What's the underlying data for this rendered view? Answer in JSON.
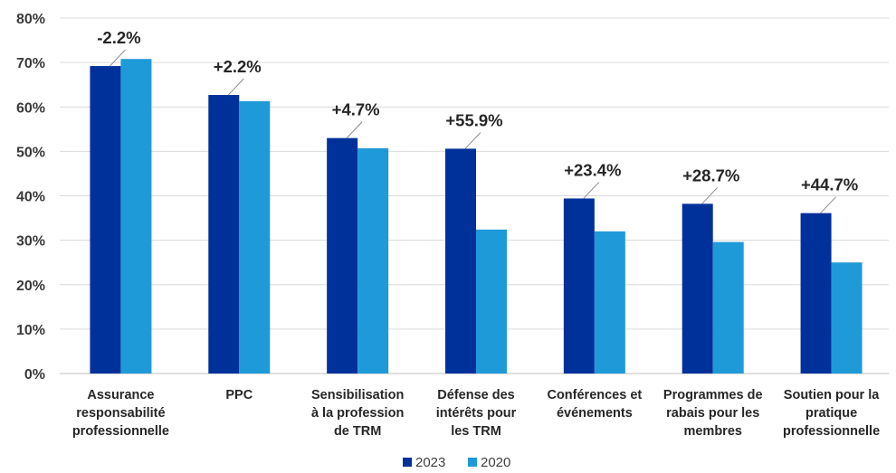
{
  "chart_data": {
    "type": "bar",
    "title": "",
    "xlabel": "",
    "ylabel": "",
    "ylim": [
      0,
      80
    ],
    "y_ticks": [
      "0%",
      "10%",
      "20%",
      "30%",
      "40%",
      "50%",
      "60%",
      "70%",
      "80%"
    ],
    "grid": "horizontal",
    "legend_position": "bottom",
    "categories": [
      [
        "Assurance",
        "responsabilité",
        "professionnelle"
      ],
      [
        "PPC"
      ],
      [
        "Sensibilisation",
        "à la profession",
        "de TRM"
      ],
      [
        "Défense des",
        "intérêts pour",
        "les TRM"
      ],
      [
        "Conférences et",
        "événements"
      ],
      [
        "Programmes de",
        "rabais pour les",
        "membres"
      ],
      [
        "Soutien pour la",
        "pratique",
        "professionnelle"
      ]
    ],
    "series": [
      {
        "name": "2023",
        "color": "#00319b",
        "values": [
          69.2,
          62.7,
          53.0,
          50.6,
          39.4,
          38.2,
          36.1
        ]
      },
      {
        "name": "2020",
        "color": "#1f9ad8",
        "values": [
          70.8,
          61.3,
          50.7,
          32.4,
          32.0,
          29.6,
          25.0
        ]
      }
    ],
    "annotations": [
      "-2.2%",
      "+2.2%",
      "+4.7%",
      "+55.9%",
      "+23.4%",
      "+28.7%",
      "+44.7%"
    ],
    "gridline_color": "#d9d9d9",
    "axis_color": "#bfbfbf"
  }
}
